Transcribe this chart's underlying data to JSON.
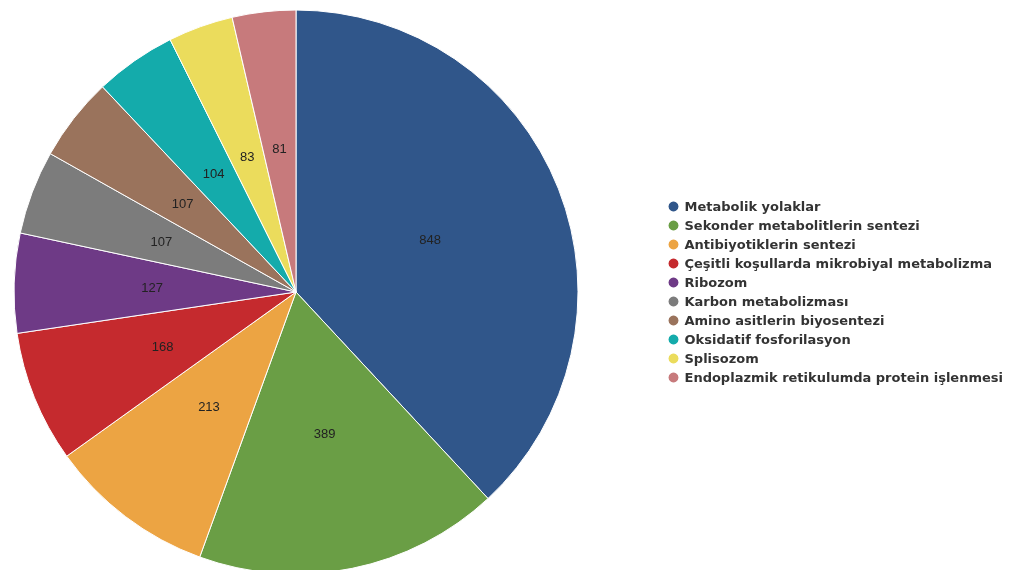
{
  "chart_data": {
    "type": "pie",
    "categories": [
      "Metabolik yolaklar",
      "Sekonder metabolitlerin sentezi",
      "Antibiyotiklerin sentezi",
      "Çeşitli koşullarda mikrobiyal metabolizma",
      "Ribozom",
      "Karbon metabolizması",
      "Amino asitlerin biyosentezi",
      "Oksidatif fosforilasyon",
      "Splisozom",
      "Endoplazmik retikulumda protein işlenmesi"
    ],
    "values": [
      848,
      389,
      213,
      168,
      127,
      107,
      107,
      104,
      83,
      81
    ],
    "colors": [
      "#30568a",
      "#6a9e45",
      "#eca443",
      "#c52a2e",
      "#6e3a86",
      "#7c7c7c",
      "#9a735c",
      "#14abab",
      "#ebdc5c",
      "#c77a7c"
    ],
    "data_labels": true,
    "legend": "right"
  }
}
